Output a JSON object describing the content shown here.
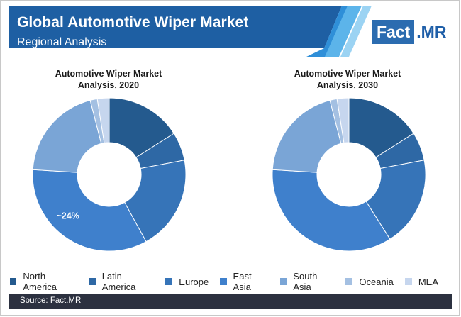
{
  "header": {
    "title": "Global Automotive Wiper Market",
    "subtitle": "Regional Analysis",
    "logo_main": "Fact",
    "logo_suffix": ".MR"
  },
  "colors": {
    "header_bg": "#1e5fa3",
    "stripe_1": "#2f8fd8",
    "stripe_2": "#5cb4ea",
    "stripe_3": "#9bd3f3",
    "footer_bg": "#2c3140"
  },
  "chart_data": [
    {
      "type": "pie",
      "title_line1": "Automotive Wiper Market",
      "title_line2": "Analysis, 2020",
      "annotation": "~24%",
      "slices": [
        {
          "name": "North America",
          "value": 16
        },
        {
          "name": "Latin America",
          "value": 6
        },
        {
          "name": "Europe",
          "value": 20
        },
        {
          "name": "East Asia",
          "value": 34
        },
        {
          "name": "South Asia",
          "value": 20
        },
        {
          "name": "Oceania",
          "value": 1.5
        },
        {
          "name": "MEA",
          "value": 2.5
        }
      ]
    },
    {
      "type": "pie",
      "title_line1": "Automotive Wiper Market",
      "title_line2": "Analysis, 2030",
      "annotation": "",
      "slices": [
        {
          "name": "North America",
          "value": 16
        },
        {
          "name": "Latin America",
          "value": 6
        },
        {
          "name": "Europe",
          "value": 19
        },
        {
          "name": "East Asia",
          "value": 35
        },
        {
          "name": "South Asia",
          "value": 20
        },
        {
          "name": "Oceania",
          "value": 1.5
        },
        {
          "name": "MEA",
          "value": 2.5
        }
      ]
    }
  ],
  "legend": [
    {
      "label": "North America",
      "color": "#245a8e"
    },
    {
      "label": "Latin America",
      "color": "#2e68a5"
    },
    {
      "label": "Europe",
      "color": "#3674b8"
    },
    {
      "label": "East Asia",
      "color": "#3f80cc"
    },
    {
      "label": "South Asia",
      "color": "#7aa5d6"
    },
    {
      "label": "Oceania",
      "color": "#a4c0e2"
    },
    {
      "label": "MEA",
      "color": "#c6d6ee"
    }
  ],
  "footer": {
    "source": "Source: Fact.MR"
  }
}
